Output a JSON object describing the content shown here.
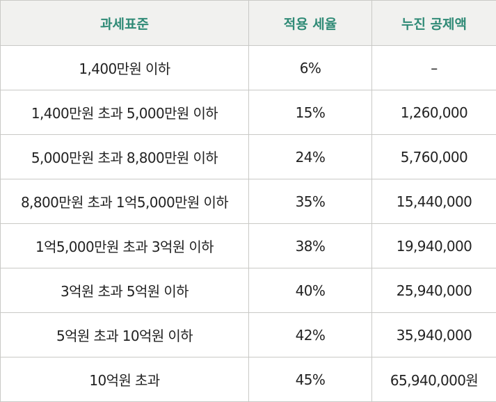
{
  "table": {
    "headers": [
      "과세표준",
      "적용 세율",
      "누진 공제액"
    ],
    "rows": [
      [
        "1,400만원 이하",
        "6%",
        "–"
      ],
      [
        "1,400만원 초과 5,000만원 이하",
        "15%",
        "1,260,000"
      ],
      [
        "5,000만원 초과 8,800만원 이하",
        "24%",
        "5,760,000"
      ],
      [
        "8,800만원 초과 1억5,000만원 이하",
        "35%",
        "15,440,000"
      ],
      [
        "1억5,000만원 초과 3억원 이하",
        "38%",
        "19,940,000"
      ],
      [
        "3억원 초과 5억원 이하",
        "40%",
        "25,940,000"
      ],
      [
        "5억원 초과 10억원 이하",
        "42%",
        "35,940,000"
      ],
      [
        "10억원 초과",
        "45%",
        "65,940,000원"
      ]
    ]
  },
  "colors": {
    "header_bg": "#f1f1ef",
    "header_text": "#2f8a76",
    "border": "#c9c9c6",
    "body_text": "#222222"
  }
}
